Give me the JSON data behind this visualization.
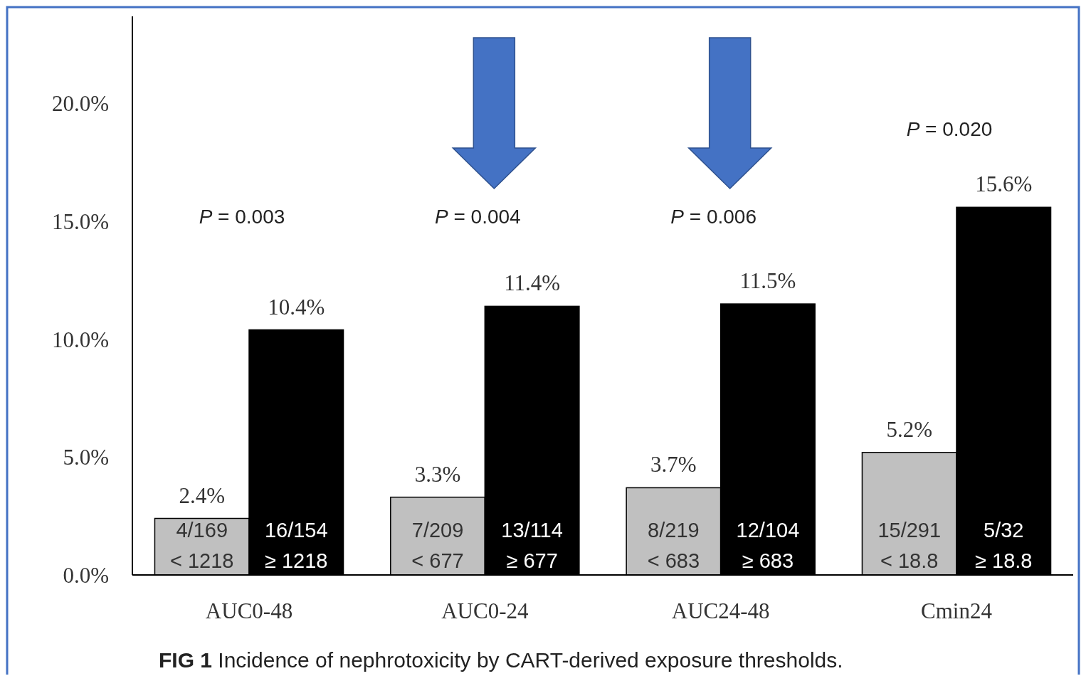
{
  "chart_data": {
    "type": "bar",
    "categories": [
      "AUC0-48",
      "AUC0-24",
      "AUC24-48",
      "Cmin24"
    ],
    "series": [
      {
        "color": "#c0c0c0",
        "values": [
          2.4,
          3.3,
          3.7,
          5.2
        ],
        "value_labels": [
          "2.4%",
          "3.3%",
          "3.7%",
          "5.2%"
        ]
      },
      {
        "color": "#000000",
        "values": [
          10.4,
          11.4,
          11.5,
          15.6
        ],
        "value_labels": [
          "10.4%",
          "11.4%",
          "11.5%",
          "15.6%"
        ]
      }
    ],
    "ylim": [
      0,
      23.7
    ],
    "yticks": [
      {
        "value": 0,
        "label": "0.0%"
      },
      {
        "value": 5,
        "label": "5.0%"
      },
      {
        "value": 10,
        "label": "10.0%"
      },
      {
        "value": 15,
        "label": "15.0%"
      },
      {
        "value": 20,
        "label": "20.0%"
      }
    ],
    "grid": false,
    "annotations": [
      "P = 0.003",
      "P = 0.004",
      "P = 0.006",
      "P = 0.020",
      {
        "text": "4/169",
        "x": "AUC0-48",
        "y": 1.9
      },
      {
        "text": "16/154",
        "x": "AUC0-48",
        "y": 1.9
      },
      {
        "text": "< 1218",
        "x": "AUC0-48",
        "y": 0.6
      },
      {
        "text": "≥ 1218",
        "x": "AUC0-48",
        "y": 0.6
      },
      {
        "text": "7/209",
        "x": "AUC0-24",
        "y": 1.9
      },
      {
        "text": "13/114",
        "x": "AUC0-24",
        "y": 1.9
      },
      {
        "text": "< 677",
        "x": "AUC0-24",
        "y": 0.6
      },
      {
        "text": "≥ 677",
        "x": "AUC0-24",
        "y": 0.6
      },
      {
        "text": "8/219",
        "x": "AUC24-48",
        "y": 1.9
      },
      {
        "text": "12/104",
        "x": "AUC24-48",
        "y": 1.9
      },
      {
        "text": "< 683",
        "x": "AUC24-48",
        "y": 0.6
      },
      {
        "text": "≥ 683",
        "x": "AUC24-48",
        "y": 0.6
      },
      {
        "text": "15/291",
        "x": "Cmin24",
        "y": 1.9
      },
      {
        "text": "5/32",
        "x": "Cmin24",
        "y": 1.9
      },
      {
        "text": "< 18.8",
        "x": "Cmin24",
        "y": 0.6
      },
      {
        "text": "≥ 18.8",
        "x": "Cmin24",
        "y": 0.6
      },
      "FIG 1 Incidence of nephrotoxicity by CART-derived exposure thresholds."
    ]
  }
}
